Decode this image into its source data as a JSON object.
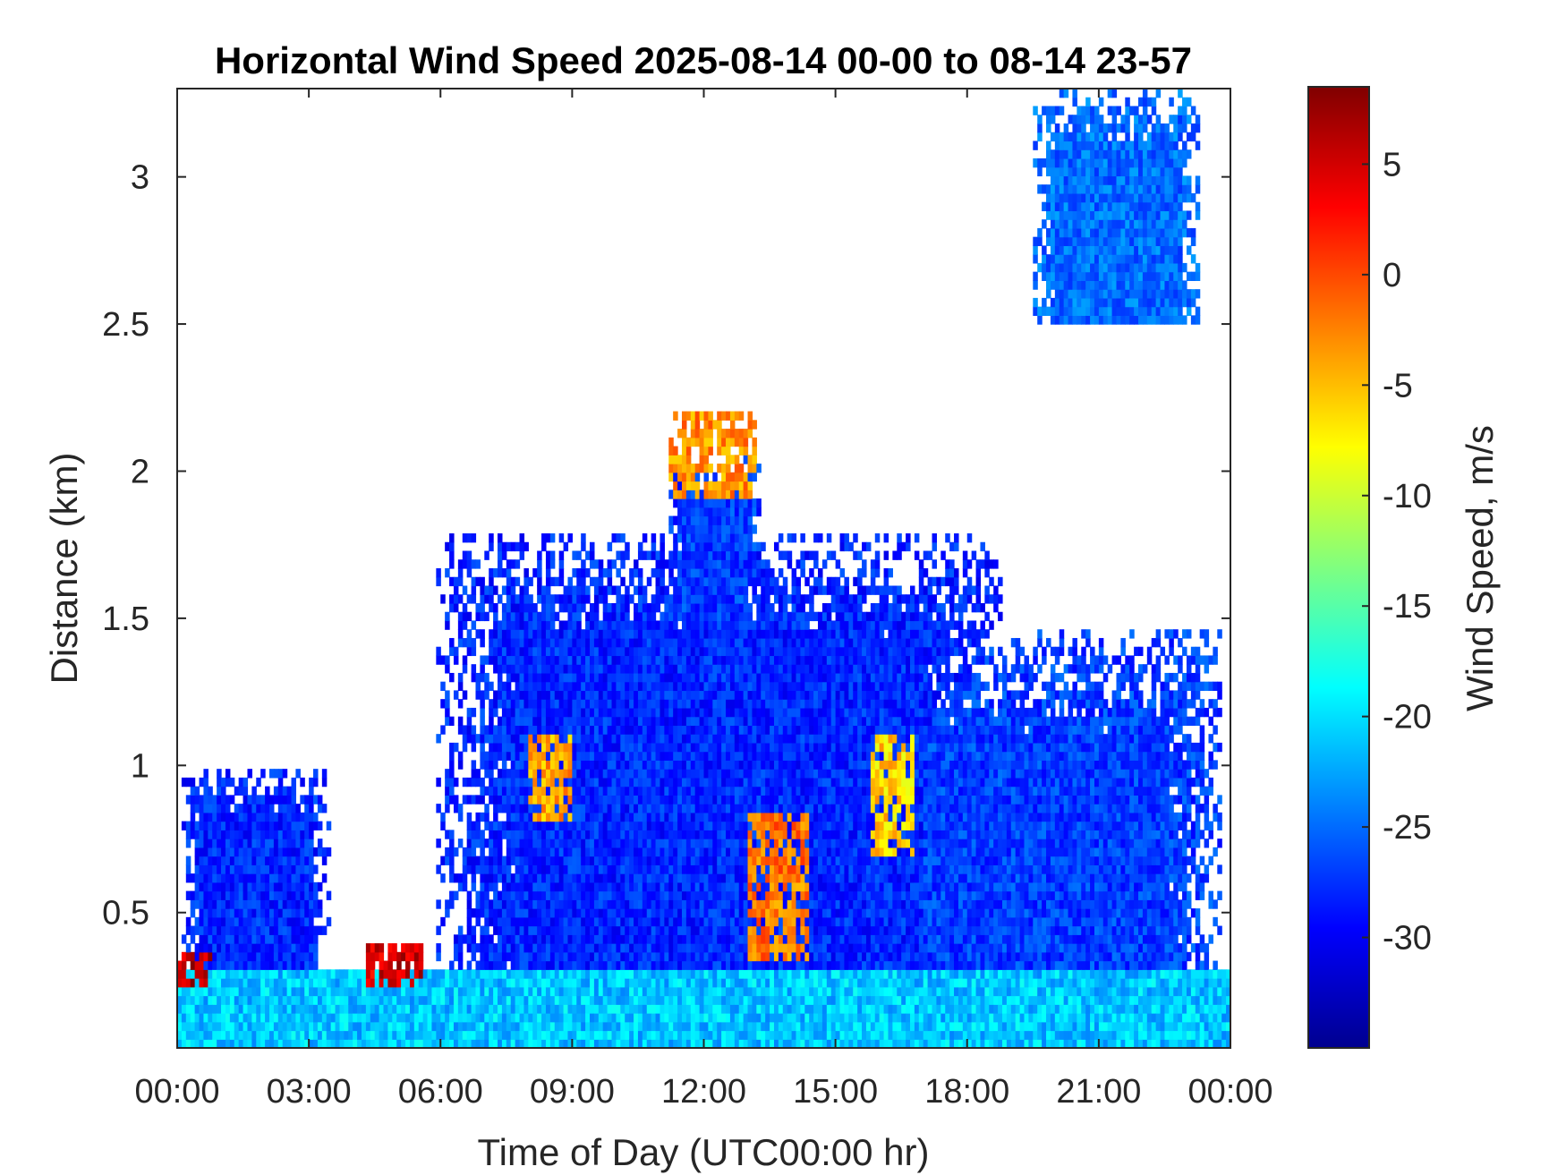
{
  "chart_data": {
    "type": "heatmap",
    "title": "Horizontal Wind Speed 2025-08-14 00-00 to 08-14 23-57",
    "xlabel": "Time of Day (UTC00:00 hr)",
    "ylabel": "Distance (km)",
    "colorbar_label": "Wind Speed, m/s",
    "colormap": "jet",
    "x_range_hours": [
      0,
      24
    ],
    "xticks": [
      {
        "v": 0,
        "label": "00:00"
      },
      {
        "v": 3,
        "label": "03:00"
      },
      {
        "v": 6,
        "label": "06:00"
      },
      {
        "v": 9,
        "label": "09:00"
      },
      {
        "v": 12,
        "label": "12:00"
      },
      {
        "v": 15,
        "label": "15:00"
      },
      {
        "v": 18,
        "label": "18:00"
      },
      {
        "v": 21,
        "label": "21:00"
      },
      {
        "v": 24,
        "label": "00:00"
      }
    ],
    "ylim": [
      0.04,
      3.3
    ],
    "yticks": [
      {
        "v": 0.5,
        "label": "0.5"
      },
      {
        "v": 1,
        "label": "1"
      },
      {
        "v": 1.5,
        "label": "1.5"
      },
      {
        "v": 2,
        "label": "2"
      },
      {
        "v": 2.5,
        "label": "2.5"
      },
      {
        "v": 3,
        "label": "3"
      }
    ],
    "clim": [
      -35,
      8.5
    ],
    "cticks": [
      {
        "v": 5,
        "label": "5"
      },
      {
        "v": 0,
        "label": "0"
      },
      {
        "v": -5,
        "label": "-5"
      },
      {
        "v": -10,
        "label": "-10"
      },
      {
        "v": -15,
        "label": "-15"
      },
      {
        "v": -20,
        "label": "-20"
      },
      {
        "v": -25,
        "label": "-25"
      },
      {
        "v": -30,
        "label": "-30"
      }
    ],
    "grid": false,
    "regions": [
      {
        "desc": "near-surface layer",
        "t": [
          0,
          24
        ],
        "h": [
          0.04,
          0.3
        ],
        "speed": -21
      },
      {
        "desc": "main boundary layer",
        "t": [
          5.9,
          18.8
        ],
        "h": [
          0.25,
          1.8
        ],
        "speed": -28
      },
      {
        "desc": "afternoon column",
        "t": [
          11.2,
          13.3
        ],
        "h": [
          1.5,
          2.05
        ],
        "speed": -27
      },
      {
        "desc": "evening plumes",
        "t": [
          15,
          23.8
        ],
        "h": [
          0.04,
          1.45
        ],
        "speed": -27
      },
      {
        "desc": "night low layer",
        "t": [
          0.1,
          3.5
        ],
        "h": [
          0.3,
          1.0
        ],
        "speed": -28
      },
      {
        "desc": "upper scattered echoes",
        "t": [
          19.5,
          23.3
        ],
        "h": [
          2.5,
          3.3
        ],
        "speed": -25
      },
      {
        "desc": "low-level jet",
        "t": [
          0,
          0.8
        ],
        "h": [
          0.26,
          0.36
        ],
        "speed": 6
      },
      {
        "desc": "low-level jet",
        "t": [
          4.3,
          5.6
        ],
        "h": [
          0.26,
          0.4
        ],
        "speed": 5
      },
      {
        "desc": "afternoon core",
        "t": [
          11.2,
          13.2
        ],
        "h": [
          1.9,
          2.2
        ],
        "speed": -3
      },
      {
        "desc": "afternoon core",
        "t": [
          13.0,
          14.4
        ],
        "h": [
          0.35,
          0.85
        ],
        "speed": -2
      },
      {
        "desc": "morning core",
        "t": [
          8.0,
          9.0
        ],
        "h": [
          0.8,
          1.1
        ],
        "speed": -4
      },
      {
        "desc": "evening core",
        "t": [
          15.8,
          16.8
        ],
        "h": [
          0.7,
          1.1
        ],
        "speed": -6
      }
    ]
  }
}
